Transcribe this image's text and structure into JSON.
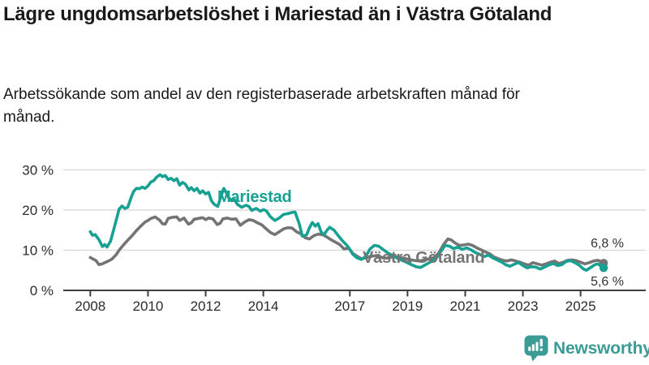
{
  "header": {
    "title": "Lägre ungdomsarbetslöshet i Mariestad än i Västra Götaland",
    "subtitle": "Arbetssökande som andel av den registerbaserade arbetskraften månad för månad."
  },
  "chart_data": {
    "type": "line",
    "grid": "horizontal",
    "legend_position": "inline-labels",
    "unit": "%",
    "x_axis": {
      "range": [
        2007.9,
        2026.4
      ],
      "ticks": [
        {
          "v": 2008,
          "label": "2008"
        },
        {
          "v": 2010,
          "label": "2010"
        },
        {
          "v": 2012,
          "label": "2012"
        },
        {
          "v": 2014,
          "label": "2014"
        },
        {
          "v": 2017,
          "label": "2017"
        },
        {
          "v": 2019,
          "label": "2019"
        },
        {
          "v": 2021,
          "label": "2021"
        },
        {
          "v": 2023,
          "label": "2023"
        },
        {
          "v": 2025,
          "label": "2025"
        }
      ]
    },
    "y_axis": {
      "range": [
        0,
        33
      ],
      "ticks": [
        {
          "v": 0,
          "label": "0 %"
        },
        {
          "v": 10,
          "label": "10 %"
        },
        {
          "v": 20,
          "label": "20 %"
        },
        {
          "v": 30,
          "label": "30 %"
        }
      ]
    },
    "series": [
      {
        "name": "Mariestad",
        "color": "#18A192",
        "end_label": "5,6 %",
        "end_value": 5.6,
        "points": [
          [
            2008.0,
            14.6
          ],
          [
            2008.08,
            13.7
          ],
          [
            2008.17,
            13.9
          ],
          [
            2008.3,
            12.6
          ],
          [
            2008.42,
            10.9
          ],
          [
            2008.5,
            11.4
          ],
          [
            2008.58,
            10.8
          ],
          [
            2008.7,
            12.2
          ],
          [
            2008.8,
            14.8
          ],
          [
            2008.9,
            17.5
          ],
          [
            2009.0,
            20.2
          ],
          [
            2009.1,
            21.0
          ],
          [
            2009.2,
            20.4
          ],
          [
            2009.3,
            20.7
          ],
          [
            2009.42,
            23.2
          ],
          [
            2009.5,
            24.6
          ],
          [
            2009.6,
            25.4
          ],
          [
            2009.7,
            25.3
          ],
          [
            2009.8,
            25.7
          ],
          [
            2009.9,
            25.4
          ],
          [
            2010.0,
            26.0
          ],
          [
            2010.1,
            27.0
          ],
          [
            2010.2,
            27.3
          ],
          [
            2010.3,
            28.2
          ],
          [
            2010.42,
            28.8
          ],
          [
            2010.5,
            28.3
          ],
          [
            2010.6,
            28.6
          ],
          [
            2010.7,
            27.6
          ],
          [
            2010.8,
            27.9
          ],
          [
            2010.9,
            27.3
          ],
          [
            2011.0,
            27.8
          ],
          [
            2011.1,
            26.2
          ],
          [
            2011.2,
            26.9
          ],
          [
            2011.3,
            26.4
          ],
          [
            2011.42,
            25.0
          ],
          [
            2011.5,
            25.6
          ],
          [
            2011.6,
            24.8
          ],
          [
            2011.7,
            25.4
          ],
          [
            2011.8,
            24.2
          ],
          [
            2011.9,
            24.8
          ],
          [
            2012.0,
            24.0
          ],
          [
            2012.1,
            24.4
          ],
          [
            2012.2,
            22.3
          ],
          [
            2012.3,
            21.4
          ],
          [
            2012.42,
            20.9
          ],
          [
            2012.55,
            23.8
          ],
          [
            2012.63,
            25.4
          ],
          [
            2012.7,
            24.5
          ],
          [
            2012.8,
            23.1
          ],
          [
            2012.9,
            22.3
          ],
          [
            2013.0,
            22.6
          ],
          [
            2013.1,
            21.4
          ],
          [
            2013.25,
            20.7
          ],
          [
            2013.4,
            21.2
          ],
          [
            2013.5,
            20.9
          ],
          [
            2013.6,
            19.9
          ],
          [
            2013.75,
            20.4
          ],
          [
            2013.9,
            19.7
          ],
          [
            2014.0,
            20.1
          ],
          [
            2014.1,
            19.8
          ],
          [
            2014.25,
            18.3
          ],
          [
            2014.4,
            17.4
          ],
          [
            2014.55,
            18.0
          ],
          [
            2014.7,
            18.9
          ],
          [
            2014.85,
            19.1
          ],
          [
            2015.0,
            19.4
          ],
          [
            2015.1,
            19.5
          ],
          [
            2015.25,
            16.5
          ],
          [
            2015.35,
            13.5
          ],
          [
            2015.5,
            13.8
          ],
          [
            2015.6,
            15.6
          ],
          [
            2015.7,
            16.9
          ],
          [
            2015.8,
            16.0
          ],
          [
            2015.9,
            16.6
          ],
          [
            2016.0,
            14.6
          ],
          [
            2016.1,
            13.8
          ],
          [
            2016.2,
            14.9
          ],
          [
            2016.3,
            15.7
          ],
          [
            2016.45,
            15.0
          ],
          [
            2016.6,
            13.6
          ],
          [
            2016.75,
            12.3
          ],
          [
            2016.9,
            11.2
          ],
          [
            2017.0,
            10.2
          ],
          [
            2017.1,
            9.0
          ],
          [
            2017.25,
            8.1
          ],
          [
            2017.4,
            7.7
          ],
          [
            2017.55,
            8.4
          ],
          [
            2017.7,
            10.3
          ],
          [
            2017.85,
            11.2
          ],
          [
            2018.0,
            11.0
          ],
          [
            2018.15,
            10.2
          ],
          [
            2018.3,
            9.4
          ],
          [
            2018.5,
            8.6
          ],
          [
            2018.7,
            7.8
          ],
          [
            2018.9,
            7.2
          ],
          [
            2019.1,
            6.5
          ],
          [
            2019.3,
            5.9
          ],
          [
            2019.45,
            5.7
          ],
          [
            2019.6,
            6.3
          ],
          [
            2019.8,
            7.1
          ],
          [
            2020.0,
            8.0
          ],
          [
            2020.15,
            9.6
          ],
          [
            2020.3,
            11.2
          ],
          [
            2020.45,
            11.0
          ],
          [
            2020.6,
            10.4
          ],
          [
            2020.75,
            10.8
          ],
          [
            2020.9,
            10.2
          ],
          [
            2021.05,
            10.6
          ],
          [
            2021.2,
            10.1
          ],
          [
            2021.35,
            9.4
          ],
          [
            2021.5,
            9.0
          ],
          [
            2021.65,
            8.4
          ],
          [
            2021.8,
            8.8
          ],
          [
            2021.95,
            8.1
          ],
          [
            2022.1,
            7.6
          ],
          [
            2022.25,
            7.1
          ],
          [
            2022.4,
            6.4
          ],
          [
            2022.55,
            6.0
          ],
          [
            2022.7,
            6.5
          ],
          [
            2022.85,
            6.9
          ],
          [
            2023.0,
            6.2
          ],
          [
            2023.15,
            5.6
          ],
          [
            2023.3,
            5.9
          ],
          [
            2023.45,
            5.8
          ],
          [
            2023.6,
            5.3
          ],
          [
            2023.75,
            5.8
          ],
          [
            2023.9,
            6.3
          ],
          [
            2024.05,
            6.7
          ],
          [
            2024.2,
            6.2
          ],
          [
            2024.35,
            6.4
          ],
          [
            2024.5,
            7.2
          ],
          [
            2024.65,
            7.4
          ],
          [
            2024.8,
            6.9
          ],
          [
            2024.95,
            6.3
          ],
          [
            2025.1,
            5.3
          ],
          [
            2025.2,
            5.0
          ],
          [
            2025.35,
            5.7
          ],
          [
            2025.5,
            6.4
          ],
          [
            2025.6,
            6.6
          ],
          [
            2025.7,
            6.1
          ],
          [
            2025.8,
            5.6
          ]
        ]
      },
      {
        "name": "Västra Götaland",
        "color": "#747474",
        "end_label": "6,8 %",
        "end_value": 6.8,
        "points": [
          [
            2008.0,
            8.2
          ],
          [
            2008.1,
            7.8
          ],
          [
            2008.2,
            7.4
          ],
          [
            2008.3,
            6.4
          ],
          [
            2008.42,
            6.6
          ],
          [
            2008.5,
            6.9
          ],
          [
            2008.6,
            7.2
          ],
          [
            2008.75,
            7.8
          ],
          [
            2008.9,
            8.9
          ],
          [
            2009.0,
            10.0
          ],
          [
            2009.15,
            11.3
          ],
          [
            2009.3,
            12.5
          ],
          [
            2009.45,
            13.6
          ],
          [
            2009.6,
            14.9
          ],
          [
            2009.75,
            16.0
          ],
          [
            2009.9,
            17.0
          ],
          [
            2010.0,
            17.4
          ],
          [
            2010.1,
            17.9
          ],
          [
            2010.25,
            18.3
          ],
          [
            2010.4,
            17.5
          ],
          [
            2010.5,
            16.6
          ],
          [
            2010.6,
            16.5
          ],
          [
            2010.7,
            17.9
          ],
          [
            2010.85,
            18.2
          ],
          [
            2011.0,
            18.3
          ],
          [
            2011.1,
            17.4
          ],
          [
            2011.25,
            18.0
          ],
          [
            2011.4,
            16.5
          ],
          [
            2011.5,
            16.8
          ],
          [
            2011.6,
            17.7
          ],
          [
            2011.75,
            17.9
          ],
          [
            2011.9,
            18.1
          ],
          [
            2012.0,
            17.6
          ],
          [
            2012.1,
            18.0
          ],
          [
            2012.25,
            17.8
          ],
          [
            2012.4,
            16.4
          ],
          [
            2012.5,
            16.7
          ],
          [
            2012.6,
            17.8
          ],
          [
            2012.75,
            18.0
          ],
          [
            2012.9,
            17.7
          ],
          [
            2013.05,
            17.8
          ],
          [
            2013.2,
            16.2
          ],
          [
            2013.35,
            17.0
          ],
          [
            2013.5,
            17.6
          ],
          [
            2013.65,
            17.4
          ],
          [
            2013.8,
            16.8
          ],
          [
            2013.95,
            16.3
          ],
          [
            2014.1,
            15.3
          ],
          [
            2014.25,
            14.4
          ],
          [
            2014.4,
            13.9
          ],
          [
            2014.55,
            14.6
          ],
          [
            2014.7,
            15.3
          ],
          [
            2014.85,
            15.6
          ],
          [
            2015.0,
            15.5
          ],
          [
            2015.15,
            14.6
          ],
          [
            2015.3,
            14.1
          ],
          [
            2015.45,
            13.1
          ],
          [
            2015.6,
            12.8
          ],
          [
            2015.75,
            13.6
          ],
          [
            2015.9,
            14.0
          ],
          [
            2016.05,
            13.9
          ],
          [
            2016.2,
            13.3
          ],
          [
            2016.35,
            12.6
          ],
          [
            2016.5,
            12.0
          ],
          [
            2016.65,
            11.4
          ],
          [
            2016.8,
            10.3
          ],
          [
            2016.95,
            10.6
          ],
          [
            2017.1,
            9.2
          ],
          [
            2017.25,
            8.5
          ],
          [
            2017.4,
            7.9
          ],
          [
            2017.55,
            8.1
          ],
          [
            2017.7,
            8.4
          ],
          [
            2017.85,
            8.6
          ],
          [
            2018.0,
            8.5
          ],
          [
            2018.2,
            8.0
          ],
          [
            2018.4,
            8.2
          ],
          [
            2018.6,
            8.4
          ],
          [
            2018.8,
            8.1
          ],
          [
            2019.0,
            7.8
          ],
          [
            2019.2,
            7.5
          ],
          [
            2019.4,
            7.3
          ],
          [
            2019.6,
            7.6
          ],
          [
            2019.8,
            7.9
          ],
          [
            2019.95,
            8.3
          ],
          [
            2020.1,
            9.5
          ],
          [
            2020.25,
            11.4
          ],
          [
            2020.4,
            12.8
          ],
          [
            2020.5,
            12.6
          ],
          [
            2020.65,
            11.8
          ],
          [
            2020.8,
            11.2
          ],
          [
            2020.95,
            11.3
          ],
          [
            2021.1,
            11.5
          ],
          [
            2021.25,
            11.2
          ],
          [
            2021.4,
            10.6
          ],
          [
            2021.55,
            10.1
          ],
          [
            2021.7,
            9.6
          ],
          [
            2021.85,
            9.1
          ],
          [
            2022.0,
            8.3
          ],
          [
            2022.15,
            7.9
          ],
          [
            2022.3,
            7.5
          ],
          [
            2022.45,
            7.3
          ],
          [
            2022.6,
            7.6
          ],
          [
            2022.75,
            7.3
          ],
          [
            2022.9,
            7.0
          ],
          [
            2023.05,
            6.6
          ],
          [
            2023.2,
            6.3
          ],
          [
            2023.35,
            6.9
          ],
          [
            2023.5,
            6.6
          ],
          [
            2023.65,
            6.3
          ],
          [
            2023.8,
            6.6
          ],
          [
            2023.95,
            7.0
          ],
          [
            2024.1,
            7.3
          ],
          [
            2024.25,
            6.7
          ],
          [
            2024.4,
            7.0
          ],
          [
            2024.55,
            7.5
          ],
          [
            2024.7,
            7.6
          ],
          [
            2024.85,
            7.4
          ],
          [
            2025.0,
            7.0
          ],
          [
            2025.15,
            6.6
          ],
          [
            2025.3,
            6.9
          ],
          [
            2025.45,
            7.3
          ],
          [
            2025.6,
            7.5
          ],
          [
            2025.7,
            7.2
          ],
          [
            2025.8,
            6.8
          ]
        ]
      }
    ],
    "style": {
      "grid_color": "#D8D8D8",
      "axis_color": "#3F3F3F",
      "tick_label_color": "#2B2B2B",
      "brand_color": "#3B9B95"
    }
  },
  "footer": {
    "brand": "Newsworthy"
  }
}
